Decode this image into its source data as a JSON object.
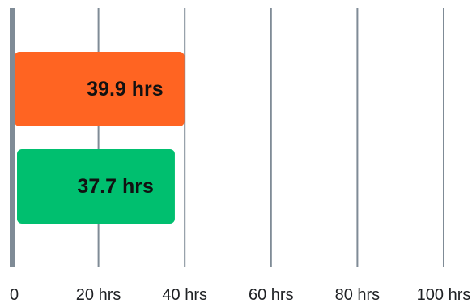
{
  "chart_data": {
    "type": "bar",
    "orientation": "horizontal",
    "categories": [
      "",
      ""
    ],
    "values": [
      39.9,
      37.7
    ],
    "data_labels": [
      "39.9 hrs",
      "37.7 hrs"
    ],
    "colors": [
      "#ff6422",
      "#00bf6f"
    ],
    "xlim": [
      0,
      100
    ],
    "x_ticks": [
      0,
      20,
      40,
      60,
      80,
      100
    ],
    "x_tick_labels": [
      "0",
      "20 hrs",
      "40 hrs",
      "60 hrs",
      "80 hrs",
      "100 hrs"
    ],
    "grid": true,
    "legend": "none",
    "title": "",
    "xlabel": "",
    "ylabel": ""
  }
}
